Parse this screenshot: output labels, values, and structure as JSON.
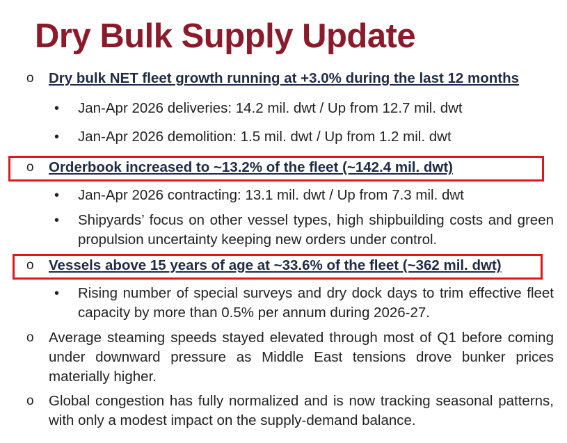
{
  "title": "Dry Bulk Supply Update",
  "markers": {
    "level1": "o",
    "level2": "•"
  },
  "highlight_color": "#e1151c",
  "title_color": "#8b1a2b",
  "sections": [
    {
      "heading": "Dry bulk NET fleet growth running at +3.0% during the last 12 months",
      "highlighted": false,
      "bullets": [
        "Jan-Apr 2026 deliveries: 14.2 mil. dwt / Up from 12.7 mil. dwt",
        "Jan-Apr 2026 demolition: 1.5 mil. dwt / Up from 1.2 mil. dwt"
      ]
    },
    {
      "heading": "Orderbook increased to ~13.2% of the fleet (~142.4 mil. dwt)",
      "highlighted": true,
      "bullets": [
        "Jan-Apr 2026 contracting: 13.1 mil. dwt / Up from 7.3 mil. dwt",
        "Shipyards’ focus on other vessel types, high shipbuilding costs and green propulsion uncertainty keeping new orders under control."
      ]
    },
    {
      "heading": "Vessels above 15 years of age at ~33.6% of the fleet (~362 mil. dwt)",
      "highlighted": true,
      "bullets": [
        "Rising number of special surveys and dry dock days to trim effective fleet capacity by more than 0.5% per annum during 2026-27."
      ]
    }
  ],
  "plain_items": [
    "Average steaming speeds stayed elevated through most of Q1 before coming under downward pressure as Middle East tensions drove bunker prices materially higher.",
    "Global congestion has fully normalized and is now tracking seasonal patterns, with only a modest impact on the supply-demand balance."
  ]
}
